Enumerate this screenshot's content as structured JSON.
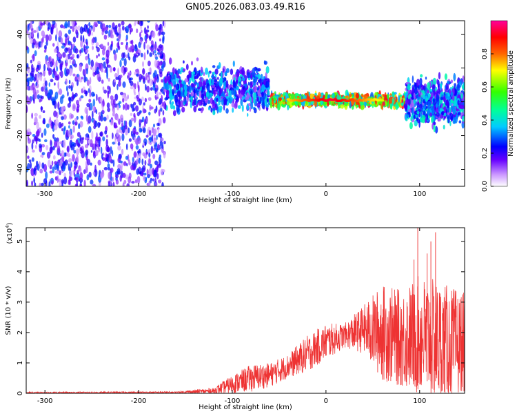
{
  "figure_title": "GN05.2026.083.03.49.R16",
  "chart_data": [
    {
      "type": "heatmap",
      "title": "GN05.2026.083.03.49.R16",
      "xlabel": "Height of straight line (km)",
      "ylabel": "Frequency (Hz)",
      "xlim": [
        -320,
        148
      ],
      "ylim": [
        -50,
        48
      ],
      "xticks": [
        -300,
        -200,
        -100,
        0,
        100
      ],
      "xtick_labels": [
        "-300",
        "-200",
        "-100",
        "0",
        "100"
      ],
      "yticks": [
        -40,
        -20,
        0,
        20,
        40
      ],
      "ytick_labels": [
        "-40",
        "-20",
        "0",
        "20",
        "40"
      ],
      "colorbar": {
        "label": "Normalized spectral amplitude",
        "range": [
          0,
          1
        ],
        "ticks": [
          0.0,
          0.2,
          0.4,
          0.6,
          0.8
        ],
        "tick_labels": [
          "0.0",
          "0.2",
          "0.4",
          "0.6",
          "0.8"
        ],
        "colormap": [
          "#ffffff",
          "#9966ff",
          "#0000ff",
          "#00ffff",
          "#00ff00",
          "#ffff00",
          "#ff0000",
          "#ff00ff"
        ]
      },
      "regions": [
        {
          "name": "noise",
          "x_range": [
            -320,
            -172
          ],
          "y_range": [
            -50,
            48
          ],
          "amplitude": [
            0.05,
            0.3
          ]
        },
        {
          "name": "onset",
          "x_range": [
            -172,
            -60
          ],
          "y_center": 8,
          "y_halfwidth": 12,
          "amplitude": [
            0.1,
            0.4
          ]
        },
        {
          "name": "main",
          "x_range": [
            -60,
            85
          ],
          "y_center": 1,
          "y_halfwidth": 3,
          "amplitude": [
            0.3,
            0.95
          ]
        },
        {
          "name": "tail",
          "x_range": [
            85,
            148
          ],
          "y_center": 0,
          "y_halfwidth": 12,
          "amplitude": [
            0.1,
            0.45
          ]
        }
      ]
    },
    {
      "type": "line",
      "xlabel": "Height of straight line (km)",
      "ylabel": "SNR (10 * v/v)",
      "y_scale_label": "(x10",
      "y_scale_exponent": "4",
      "y_scale_suffix": ")",
      "xlim": [
        -320,
        148
      ],
      "ylim": [
        0,
        5.45
      ],
      "xticks": [
        -300,
        -200,
        -100,
        0,
        100
      ],
      "xtick_labels": [
        "-300",
        "-200",
        "-100",
        "0",
        "100"
      ],
      "yticks": [
        0,
        1,
        2,
        3,
        4,
        5
      ],
      "ytick_labels": [
        "0",
        "1",
        "2",
        "3",
        "4",
        "5"
      ],
      "series_color": "#ee3333",
      "envelope": [
        {
          "x": -320,
          "mean": 0.02,
          "spread": 0.02
        },
        {
          "x": -160,
          "mean": 0.03,
          "spread": 0.03
        },
        {
          "x": -120,
          "mean": 0.08,
          "spread": 0.1
        },
        {
          "x": -100,
          "mean": 0.3,
          "spread": 0.3
        },
        {
          "x": -80,
          "mean": 0.5,
          "spread": 0.45
        },
        {
          "x": -60,
          "mean": 0.6,
          "spread": 0.4
        },
        {
          "x": -40,
          "mean": 0.9,
          "spread": 0.4
        },
        {
          "x": -20,
          "mean": 1.3,
          "spread": 0.6
        },
        {
          "x": 0,
          "mean": 1.7,
          "spread": 0.6
        },
        {
          "x": 20,
          "mean": 1.9,
          "spread": 0.4
        },
        {
          "x": 40,
          "mean": 2.1,
          "spread": 0.8
        },
        {
          "x": 60,
          "mean": 2.0,
          "spread": 1.6
        },
        {
          "x": 80,
          "mean": 1.8,
          "spread": 1.6
        },
        {
          "x": 100,
          "mean": 1.9,
          "spread": 2.0
        },
        {
          "x": 120,
          "mean": 1.7,
          "spread": 2.0
        },
        {
          "x": 148,
          "mean": 1.5,
          "spread": 1.8
        }
      ],
      "peaks": [
        {
          "x": 98,
          "y": 5.45
        },
        {
          "x": 117,
          "y": 5.3
        },
        {
          "x": 112,
          "y": 5.0
        },
        {
          "x": 94,
          "y": 4.4
        },
        {
          "x": 108,
          "y": 4.6
        }
      ]
    }
  ]
}
